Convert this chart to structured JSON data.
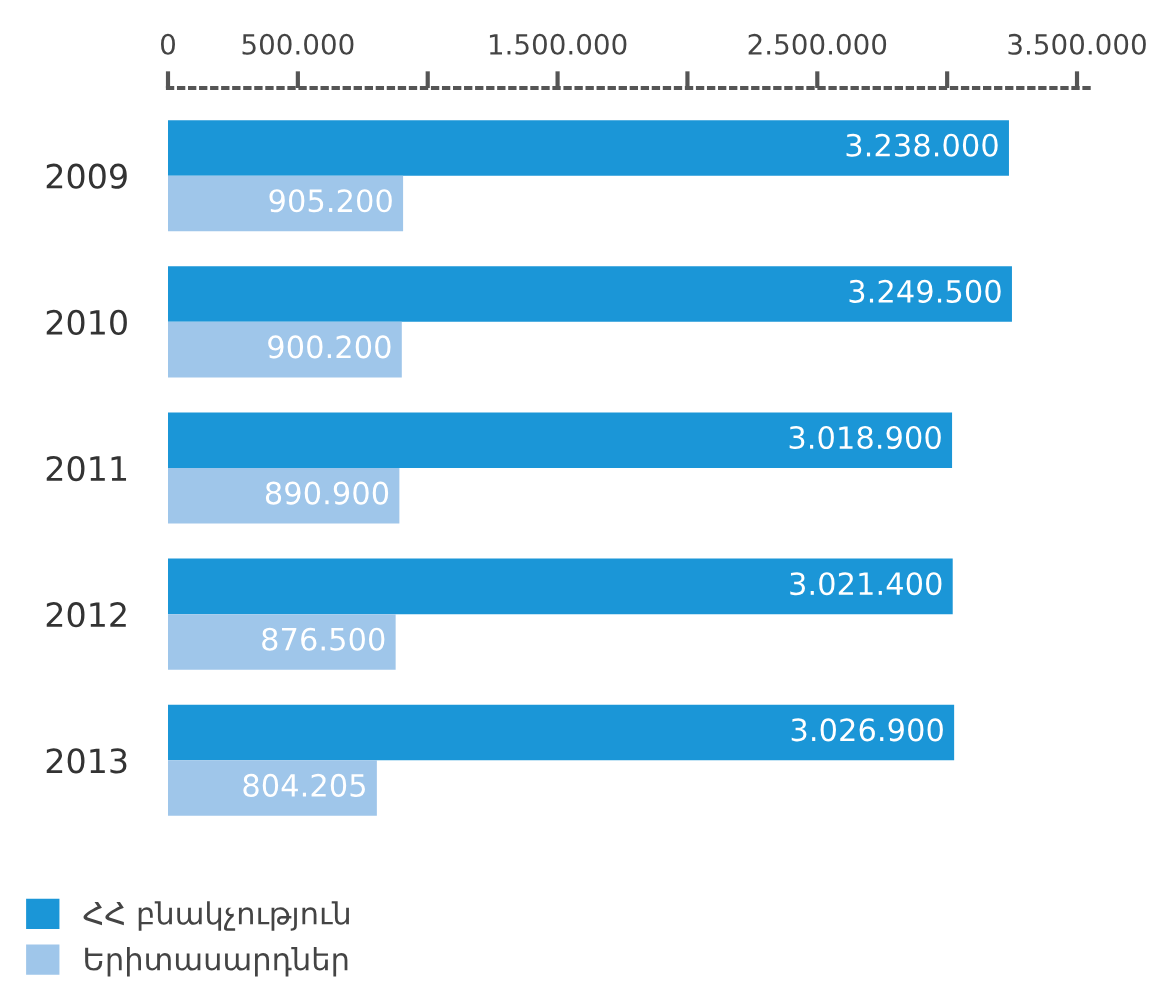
{
  "chart_data": {
    "type": "bar",
    "orientation": "horizontal",
    "categories": [
      "2009",
      "2010",
      "2011",
      "2012",
      "2013"
    ],
    "series": [
      {
        "name": "ՀՀ բնակչություն",
        "color": "#1b96d7",
        "values": [
          3238000,
          3249500,
          3018900,
          3021400,
          3026900
        ],
        "value_labels": [
          "3.238.000",
          "3.249.500",
          "3.018.900",
          "3.021.400",
          "3.026.900"
        ]
      },
      {
        "name": "Երիտասարդներ",
        "color": "#9fc6ea",
        "values": [
          905200,
          900200,
          890900,
          876500,
          804205
        ],
        "value_labels": [
          "905.200",
          "900.200",
          "890.900",
          "876.500",
          "804.205"
        ]
      }
    ],
    "xlim": [
      0,
      3550000
    ],
    "xticks": [
      0,
      {
        "value": 500000,
        "label": "500.000"
      },
      {
        "value": 1000000,
        "label": null
      },
      {
        "value": 1500000,
        "label": "1.500.000"
      },
      {
        "value": 2000000,
        "label": null
      },
      {
        "value": 2500000,
        "label": "2.500.000"
      },
      {
        "value": 3000000,
        "label": null
      },
      {
        "value": 3500000,
        "label": "3.500.000"
      }
    ],
    "grid": false,
    "legend": "bottom left"
  }
}
